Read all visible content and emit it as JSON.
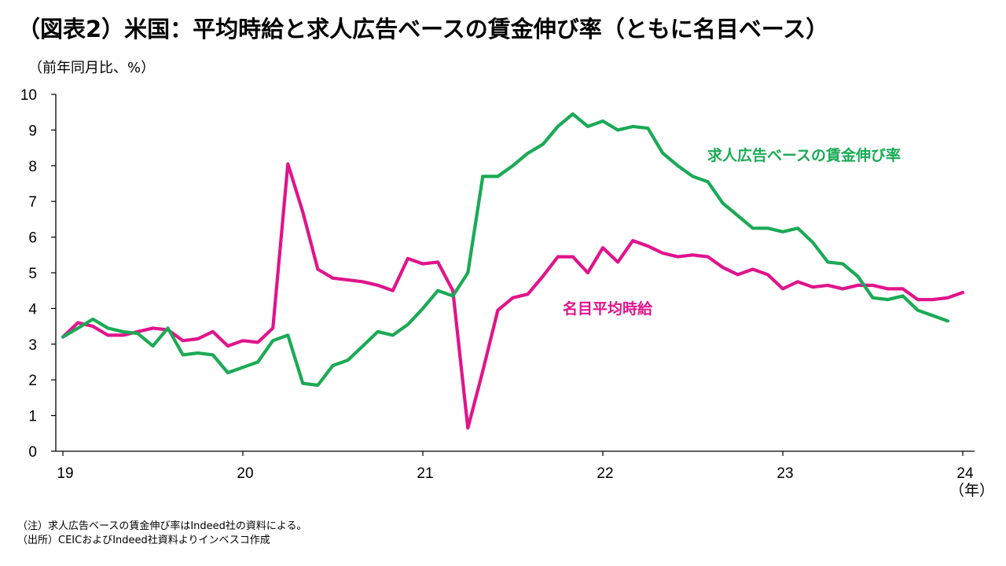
{
  "title": "（図表2）米国：平均時給と求人広告ベースの賃金伸び率（ともに名目ベース）",
  "unit_label": "（前年同月比、%）",
  "x_unit_label": "（年）",
  "notes": [
    "（注）求人広告ベースの賃金伸び率はIndeed社の資料による。",
    "（出所）CEICおよびIndeed社資料よりインベスコ作成"
  ],
  "colors": {
    "wage": "#E0148C",
    "indeed": "#1AAA55"
  },
  "chart_data": {
    "type": "line",
    "x_ticks": [
      "19",
      "20",
      "21",
      "22",
      "23",
      "24"
    ],
    "y_ticks": [
      "0",
      "1",
      "2",
      "3",
      "4",
      "5",
      "6",
      "7",
      "8",
      "9",
      "10"
    ],
    "ylim": [
      0,
      10
    ],
    "grid": false,
    "series": [
      {
        "name": "名目平均時給",
        "color": "#E0148C",
        "start": "2019-01",
        "values": [
          3.2,
          3.6,
          3.5,
          3.25,
          3.25,
          3.35,
          3.45,
          3.4,
          3.1,
          3.15,
          3.35,
          2.95,
          3.1,
          3.05,
          3.45,
          8.05,
          6.7,
          5.1,
          4.85,
          4.8,
          4.75,
          4.65,
          4.5,
          5.4,
          5.25,
          5.3,
          4.5,
          0.65,
          2.25,
          3.95,
          4.3,
          4.4,
          4.9,
          5.45,
          5.45,
          5.0,
          5.7,
          5.3,
          5.9,
          5.75,
          5.55,
          5.45,
          5.5,
          5.45,
          5.15,
          4.95,
          5.1,
          4.95,
          4.55,
          4.75,
          4.6,
          4.65,
          4.55,
          4.65,
          4.65,
          4.55,
          4.55,
          4.25,
          4.25,
          4.3,
          4.45
        ]
      },
      {
        "name": "求人広告ベースの賃金伸び率",
        "color": "#1AAA55",
        "start": "2019-01",
        "values": [
          3.2,
          3.45,
          3.7,
          3.45,
          3.35,
          3.3,
          2.95,
          3.45,
          2.7,
          2.75,
          2.7,
          2.2,
          2.35,
          2.5,
          3.1,
          3.25,
          1.9,
          1.85,
          2.4,
          2.55,
          2.95,
          3.35,
          3.25,
          3.55,
          4.0,
          4.5,
          4.35,
          5.0,
          7.7,
          7.7,
          8.0,
          8.35,
          8.6,
          9.1,
          9.45,
          9.1,
          9.25,
          9.0,
          9.1,
          9.05,
          8.35,
          8.0,
          7.7,
          7.55,
          6.95,
          6.6,
          6.25,
          6.25,
          6.15,
          6.25,
          5.85,
          5.3,
          5.25,
          4.9,
          4.3,
          4.25,
          4.35,
          3.95,
          3.8,
          3.65
        ]
      }
    ]
  }
}
